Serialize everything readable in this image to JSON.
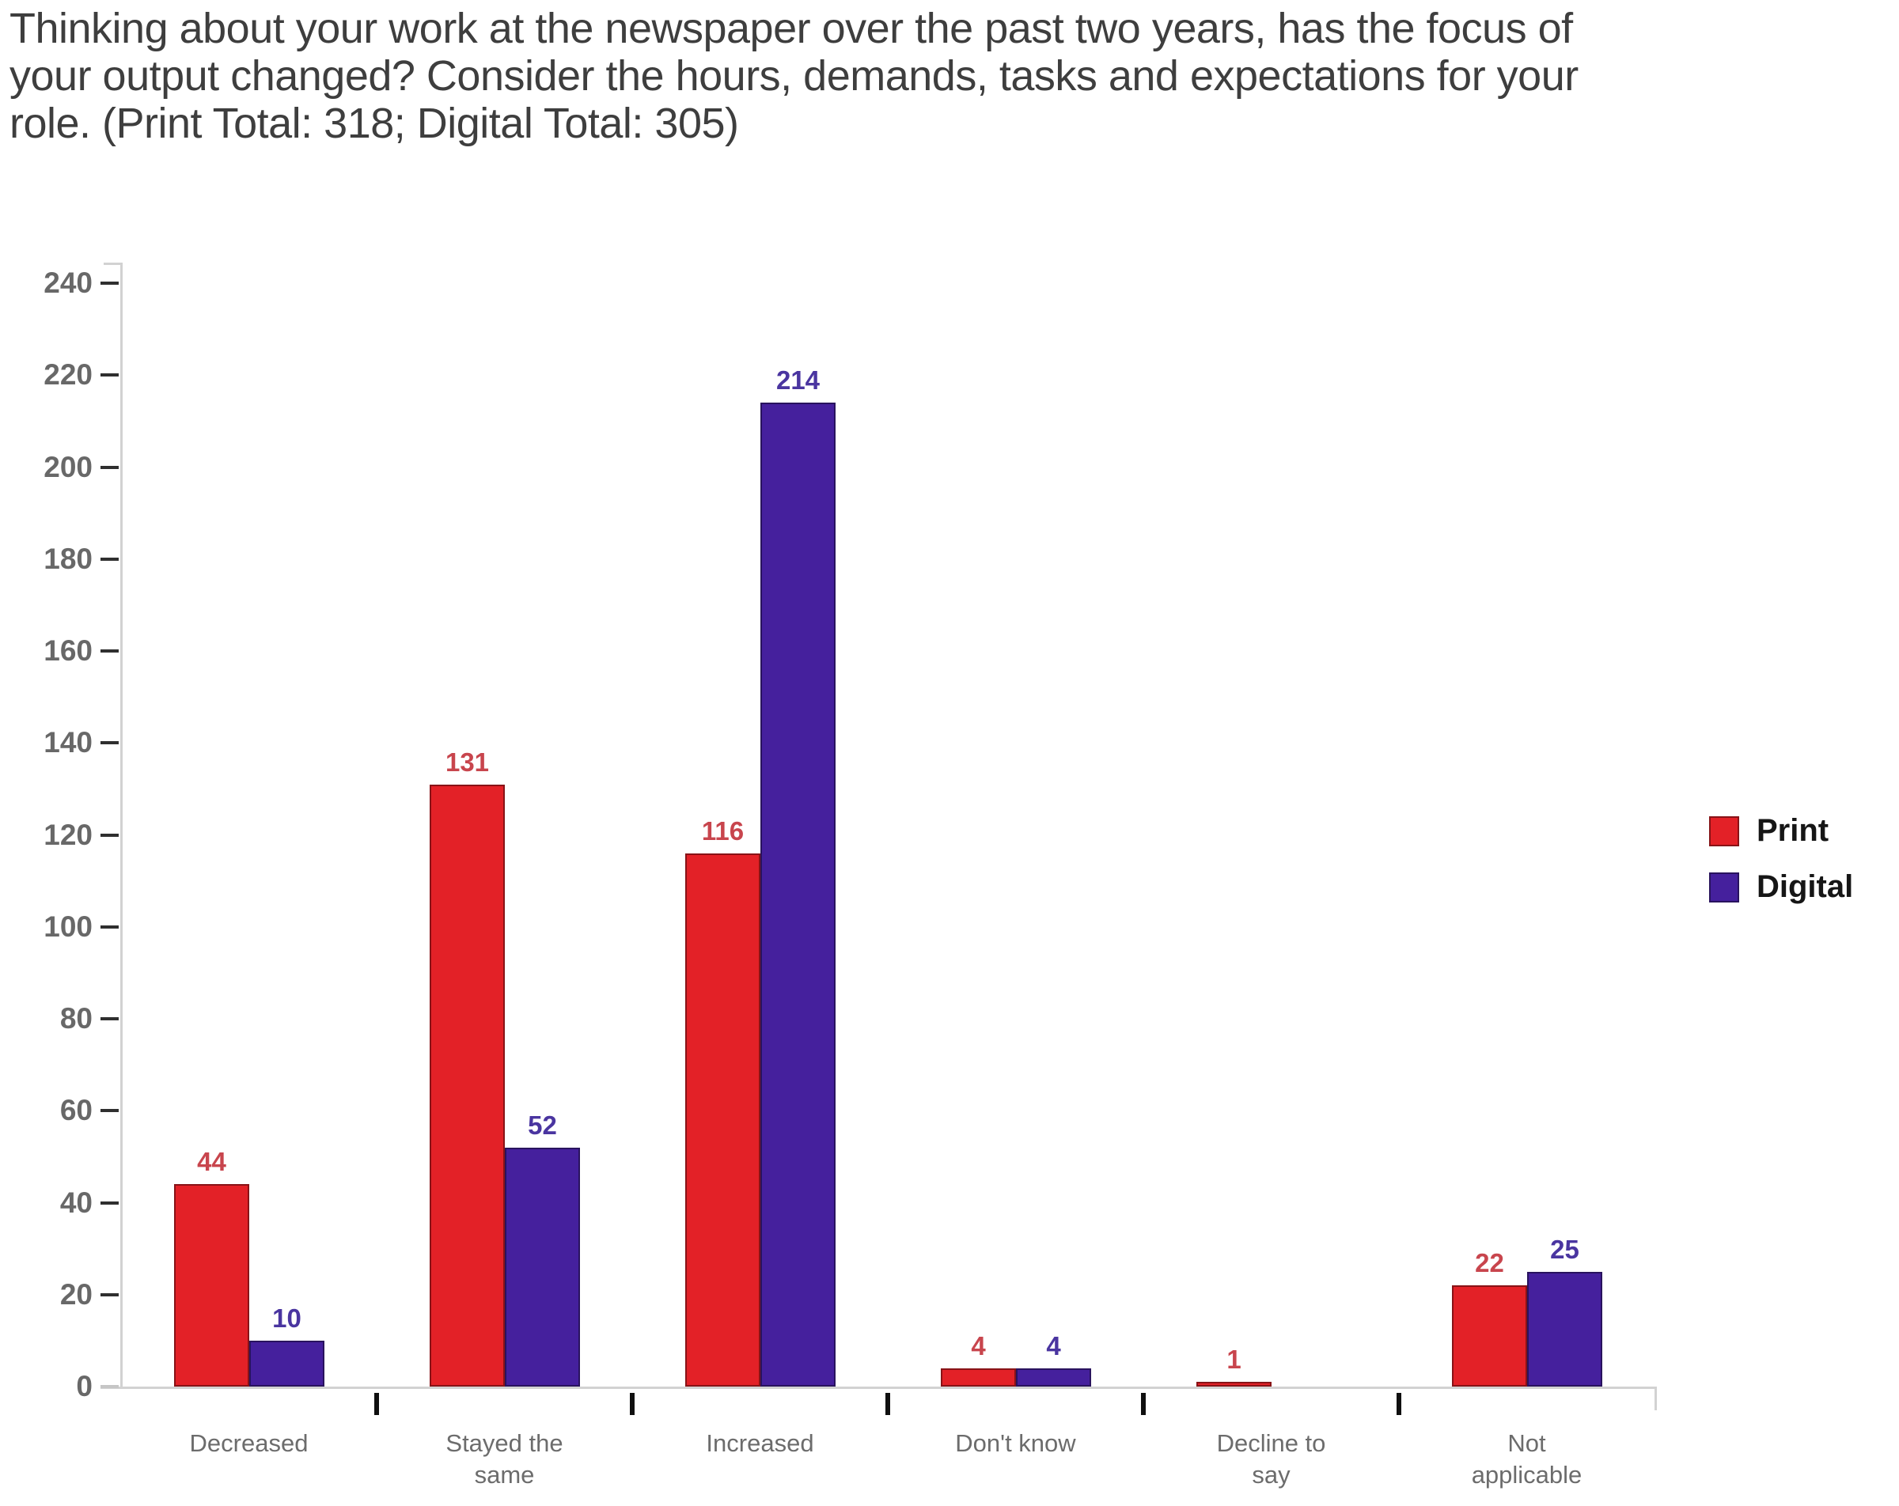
{
  "title_lines": [
    "Thinking about your work at the newspaper over the past two years, has the focus of",
    "your output changed? Consider the hours, demands, tasks and expectations for your",
    "role. (Print Total: 318; Digital Total: 305)"
  ],
  "chart_data": {
    "type": "bar",
    "title": "Thinking about your work at the newspaper over the past two years, has the focus of your output changed? Consider the hours, demands, tasks and expectations for your role. (Print Total: 318; Digital Total: 305)",
    "categories": [
      "Decreased",
      "Stayed the\nsame",
      "Increased",
      "Don't know",
      "Decline to\nsay",
      "Not\napplicable"
    ],
    "series": [
      {
        "name": "Print",
        "color": "#e32127",
        "label_color": "#c8454d",
        "values": [
          44,
          131,
          116,
          4,
          1,
          22
        ]
      },
      {
        "name": "Digital",
        "color": "#45209d",
        "label_color": "#4a35a0",
        "values": [
          10,
          52,
          214,
          4,
          0,
          25
        ]
      }
    ],
    "ylim": [
      0,
      240
    ],
    "ytick_step": 20,
    "yticks": [
      0,
      20,
      40,
      60,
      80,
      100,
      120,
      140,
      160,
      180,
      200,
      220,
      240
    ],
    "xlabel": "",
    "ylabel": "",
    "grid": "off",
    "legend_position": "right",
    "zero_values_hidden": true
  },
  "legend": {
    "items": [
      {
        "label": "Print",
        "color": "#e32127"
      },
      {
        "label": "Digital",
        "color": "#45209d"
      }
    ]
  }
}
